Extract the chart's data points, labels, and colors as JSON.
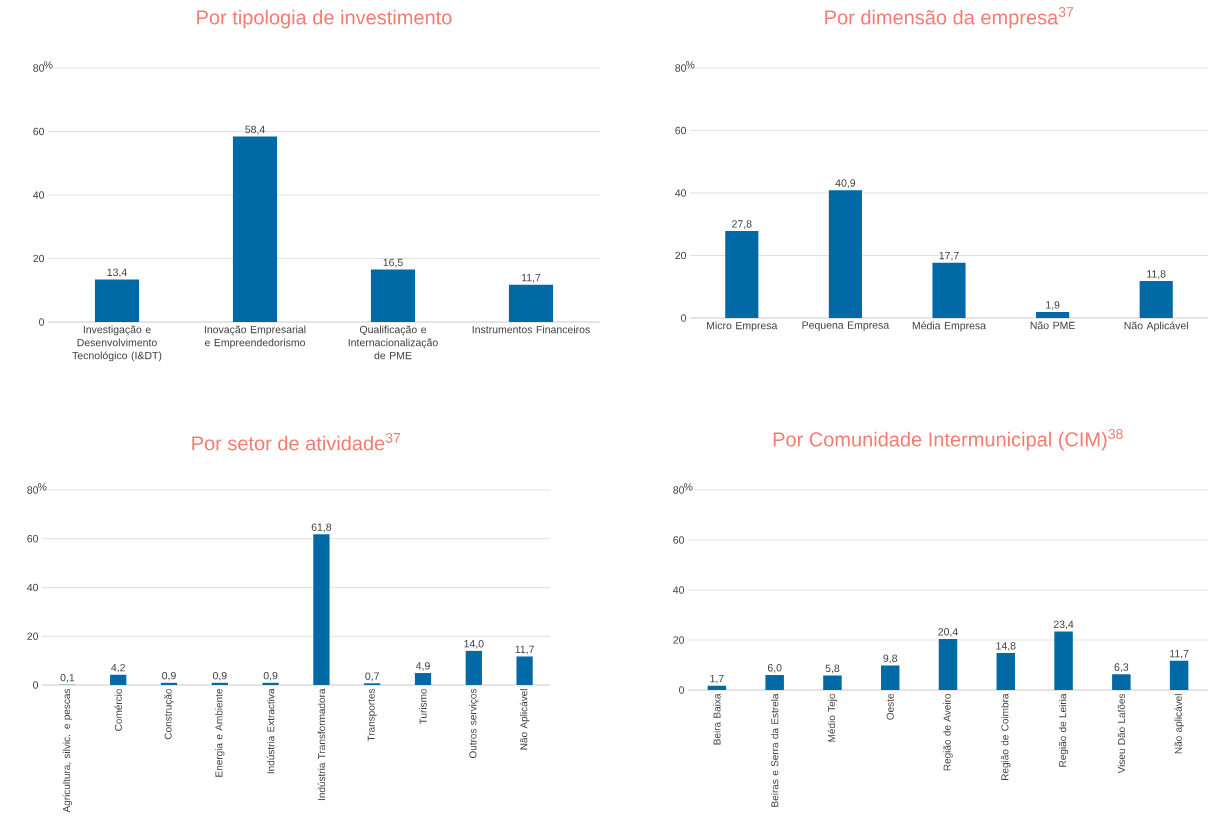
{
  "chart_data": [
    {
      "type": "bar",
      "title": "Por tipologia de investimento",
      "ylabel": "%",
      "categories": [
        "Investigação e Desenvolvimento Tecnológico (I&DT)",
        "Inovação Empresarial e Empreendedorismo",
        "Qualificação e Internacionalização de PME",
        "Instrumentos Financeiros"
      ],
      "values": [
        13.4,
        58.4,
        16.5,
        11.7
      ],
      "value_labels": [
        "13,4",
        "58,4",
        "16,5",
        "11,7"
      ],
      "color": "#0069a6",
      "ylim": [
        0,
        80
      ],
      "yticks": [
        0,
        20,
        40,
        60,
        80
      ],
      "grid": "y"
    },
    {
      "type": "bar",
      "title": "Por dimensão da empresa$^{37}$",
      "ylabel": "%",
      "categories": [
        "Micro Empresa",
        "Pequena Empresa",
        "Média Empresa",
        "Não PME",
        "Não Aplicável"
      ],
      "values": [
        27.8,
        40.9,
        17.7,
        1.9,
        11.8
      ],
      "value_labels": [
        "27,8",
        "40,9",
        "17,7",
        "1,9",
        "11,8"
      ],
      "color": "#0069a6",
      "ylim": [
        0,
        80
      ],
      "yticks": [
        0,
        20,
        40,
        60,
        80
      ],
      "grid": "y"
    },
    {
      "type": "bar",
      "title": "Por setor de atividade$^{37}$",
      "ylabel": "%",
      "categories": [
        "Agricultura, silvic. e pescas",
        "Comércio",
        "Construção",
        "Energia e Ambiente",
        "Indústria Extractiva",
        "Indústria Transformadora",
        "Transportes",
        "Turismo",
        "Outros serviços",
        "Não Aplicável"
      ],
      "values": [
        0.1,
        4.2,
        0.9,
        0.9,
        0.9,
        61.8,
        0.7,
        4.9,
        14.0,
        11.7
      ],
      "value_labels": [
        "0,1",
        "4,2",
        "0,9",
        "0,9",
        "0,9",
        "61,8",
        "0,7",
        "4,9",
        "14,0",
        "11,7"
      ],
      "color": "#0069a6",
      "ylim": [
        0,
        80
      ],
      "yticks": [
        0,
        20,
        40,
        60,
        80
      ],
      "grid": "y"
    },
    {
      "type": "bar",
      "title": "Por Comunidade  Intermunicipal (CIM)$^{38}$",
      "ylabel": "%",
      "categories": [
        "Beira Baixa",
        "Beiras e Serra da Estrela",
        "Médio Tejo",
        "Oeste",
        "Região de Aveiro",
        "Região de Coimbra",
        "Região de Leiria",
        "Viseu Dão Lafões",
        "Não aplicável"
      ],
      "values": [
        1.7,
        6.0,
        5.8,
        9.8,
        20.4,
        14.8,
        23.4,
        6.3,
        11.7
      ],
      "value_labels": [
        "1,7",
        "6,0",
        "5,8",
        "9,8",
        "20,4",
        "14,8",
        "23,4",
        "6,3",
        "11,7"
      ],
      "color": "#0069a6",
      "ylim": [
        0,
        80
      ],
      "yticks": [
        0,
        20,
        40,
        60,
        80
      ],
      "grid": "y"
    }
  ]
}
